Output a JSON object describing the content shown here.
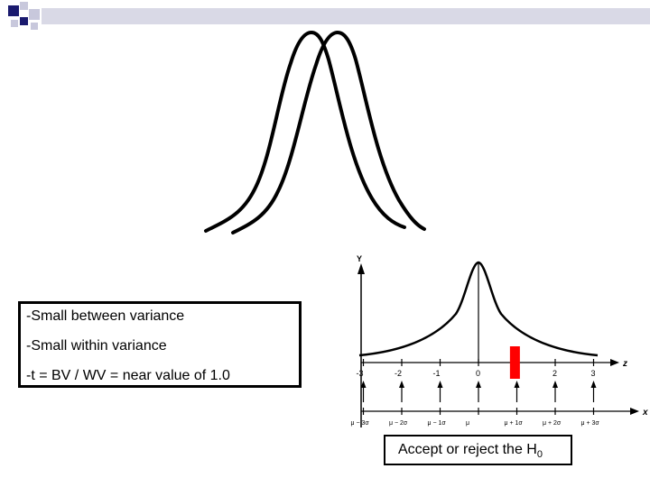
{
  "variance_box": {
    "lines": [
      "-Small between variance",
      "-Small within variance",
      "-t = BV / WV = near value of 1.0"
    ]
  },
  "normal_plot": {
    "y_axis_label": "Y",
    "z_axis_label": "z",
    "x_axis_label": "x",
    "z_ticks": [
      "-3",
      "-2",
      "-1",
      "0",
      "1",
      "2",
      "3"
    ],
    "x_ticks": [
      "μ − 3σ",
      "μ − 2σ",
      "μ − 1σ",
      "μ",
      "μ + 1σ",
      "μ + 2σ",
      "μ + 3σ"
    ],
    "marker_z": 0.95,
    "marker_color": "#ff0000"
  },
  "answer_box": {
    "text": "Accept or reject the H",
    "subscript": "0"
  },
  "colors": {
    "deco_square_dark": "#1a1a6e",
    "deco_square_light": "#c8c8dc",
    "deco_bar": "#d9d9e6"
  }
}
